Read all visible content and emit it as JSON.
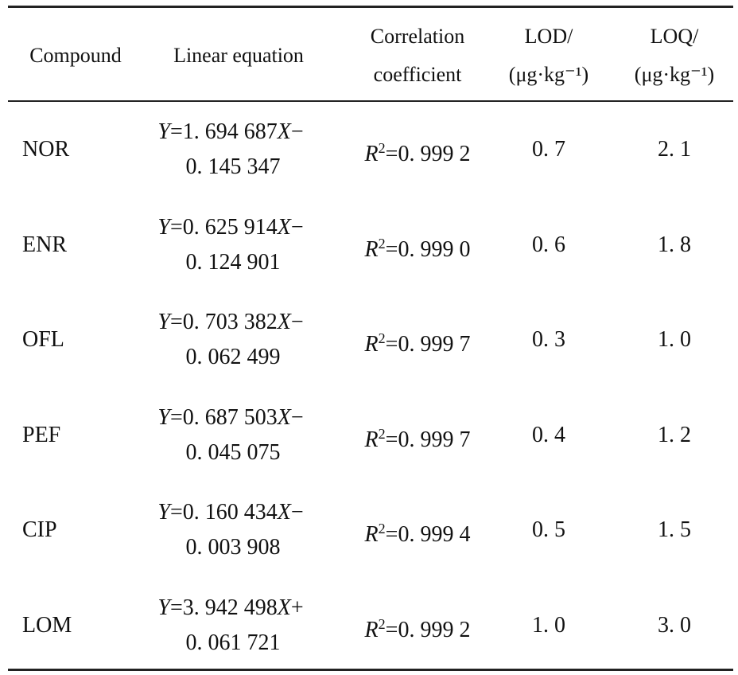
{
  "table": {
    "headers": [
      [
        "Compound"
      ],
      [
        "Linear equation"
      ],
      [
        "Correlation",
        "coefficient"
      ],
      [
        "LOD/",
        "(μg·kg⁻¹)"
      ],
      [
        "LOQ/",
        "(μg·kg⁻¹)"
      ]
    ],
    "rows": [
      [
        "NOR",
        [
          "Y=1. 694 687X−",
          "0. 145 347"
        ],
        "R²=0. 999 2",
        "0. 7",
        "2. 1"
      ],
      [
        "ENR",
        [
          "Y=0. 625 914X−",
          "0. 124 901"
        ],
        "R²=0. 999 0",
        "0. 6",
        "1. 8"
      ],
      [
        "OFL",
        [
          "Y=0. 703 382X−",
          "0. 062 499"
        ],
        "R²=0. 999 7",
        "0. 3",
        "1. 0"
      ],
      [
        "PEF",
        [
          "Y=0. 687 503X−",
          "0. 045 075"
        ],
        "R²=0. 999 7",
        "0. 4",
        "1. 2"
      ],
      [
        "CIP",
        [
          "Y=0. 160 434X−",
          "0. 003 908"
        ],
        "R²=0. 999 4",
        "0. 5",
        "1. 5"
      ],
      [
        "LOM",
        [
          "Y=3. 942 498X+",
          "0. 061 721"
        ],
        "R²=0. 999 2",
        "1. 0",
        "3. 0"
      ]
    ]
  }
}
